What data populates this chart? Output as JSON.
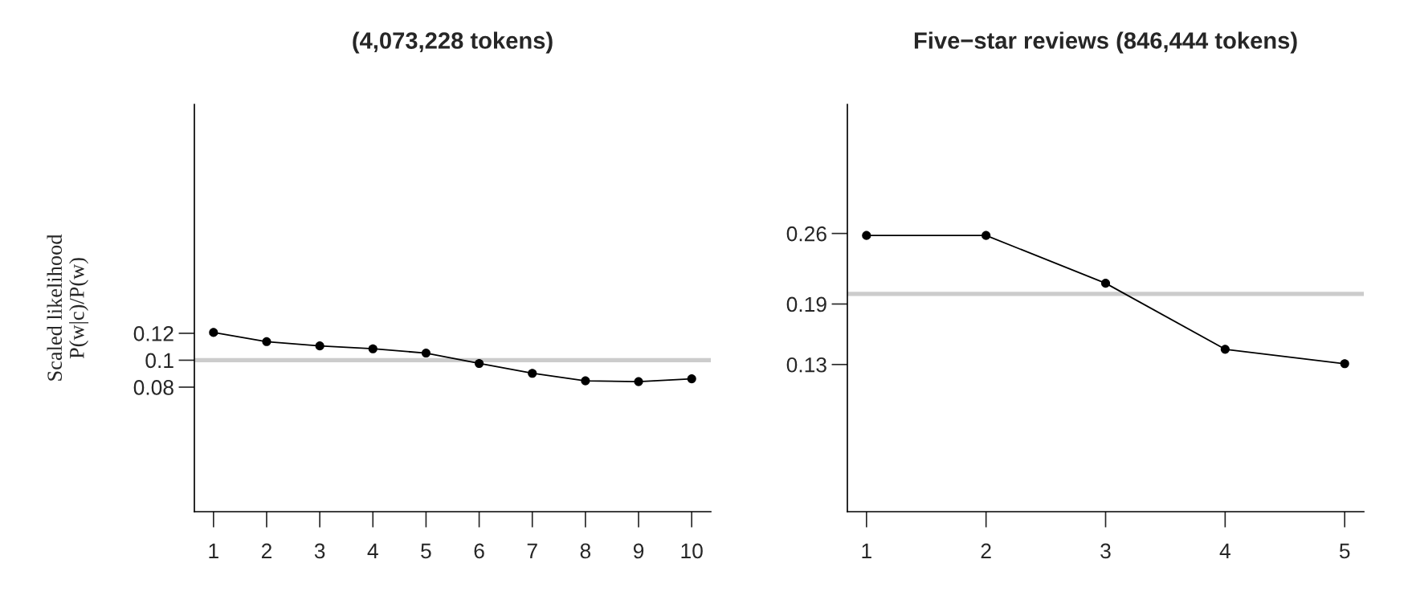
{
  "chart_data": [
    {
      "type": "line",
      "title": "(4,073,228 tokens)",
      "ylabel": "Scaled likelihood\nP(w|c)/P(w)",
      "x": [
        1,
        2,
        3,
        4,
        5,
        6,
        7,
        8,
        9,
        10
      ],
      "series": [
        {
          "color": "#000000",
          "values": [
            0.1206,
            0.1138,
            0.1106,
            0.1085,
            0.1053,
            0.0976,
            0.0903,
            0.0847,
            0.0841,
            0.0862
          ]
        }
      ],
      "xlim": [
        0.64,
        10.36
      ],
      "xticks": [
        1,
        2,
        3,
        4,
        5,
        6,
        7,
        8,
        9,
        10
      ],
      "ylim": [
        -0.0125,
        0.29
      ],
      "yticks": [
        0.12,
        0.1,
        0.08
      ],
      "ref_lines": [
        {
          "axis": "y",
          "value": 0.1,
          "color": "#cccccc"
        }
      ],
      "marker": "circle",
      "grid": false,
      "legend": false
    },
    {
      "type": "line",
      "title": "Five−star reviews (846,444 tokens)",
      "x": [
        1,
        2,
        3,
        4,
        5
      ],
      "series": [
        {
          "color": "#000000",
          "values": [
            0.258,
            0.258,
            0.2106,
            0.1451,
            0.1308
          ]
        }
      ],
      "xlim": [
        0.84,
        5.16
      ],
      "xticks": [
        1,
        2,
        3,
        4,
        5
      ],
      "ylim": [
        -0.016,
        0.388
      ],
      "yticks": [
        0.26,
        0.19,
        0.13
      ],
      "ref_lines": [
        {
          "axis": "y",
          "value": 0.2,
          "color": "#cccccc"
        }
      ],
      "marker": "circle",
      "grid": false,
      "legend": false
    }
  ]
}
